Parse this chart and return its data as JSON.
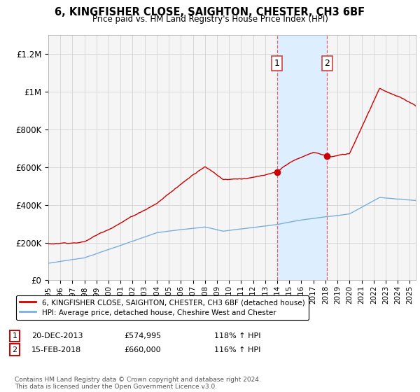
{
  "title": "6, KINGFISHER CLOSE, SAIGHTON, CHESTER, CH3 6BF",
  "subtitle": "Price paid vs. HM Land Registry's House Price Index (HPI)",
  "red_label": "6, KINGFISHER CLOSE, SAIGHTON, CHESTER, CH3 6BF (detached house)",
  "blue_label": "HPI: Average price, detached house, Cheshire West and Chester",
  "sale1_date": "20-DEC-2013",
  "sale1_price": 574995,
  "sale1_label": "118% ↑ HPI",
  "sale2_date": "15-FEB-2018",
  "sale2_price": 660000,
  "sale2_label": "116% ↑ HPI",
  "footer": "Contains HM Land Registry data © Crown copyright and database right 2024.\nThis data is licensed under the Open Government Licence v3.0.",
  "red_color": "#cc0000",
  "blue_color": "#7aade0",
  "shade_color": "#ddeeff",
  "vline_color": "#dd6666",
  "ylim": [
    0,
    1300000
  ],
  "yticks": [
    0,
    200000,
    400000,
    600000,
    800000,
    1000000,
    1200000
  ],
  "ytick_labels": [
    "£0",
    "£200K",
    "£400K",
    "£600K",
    "£800K",
    "£1M",
    "£1.2M"
  ],
  "x_start_year": 1995,
  "x_end_year": 2025,
  "background_color": "#f5f5f5"
}
